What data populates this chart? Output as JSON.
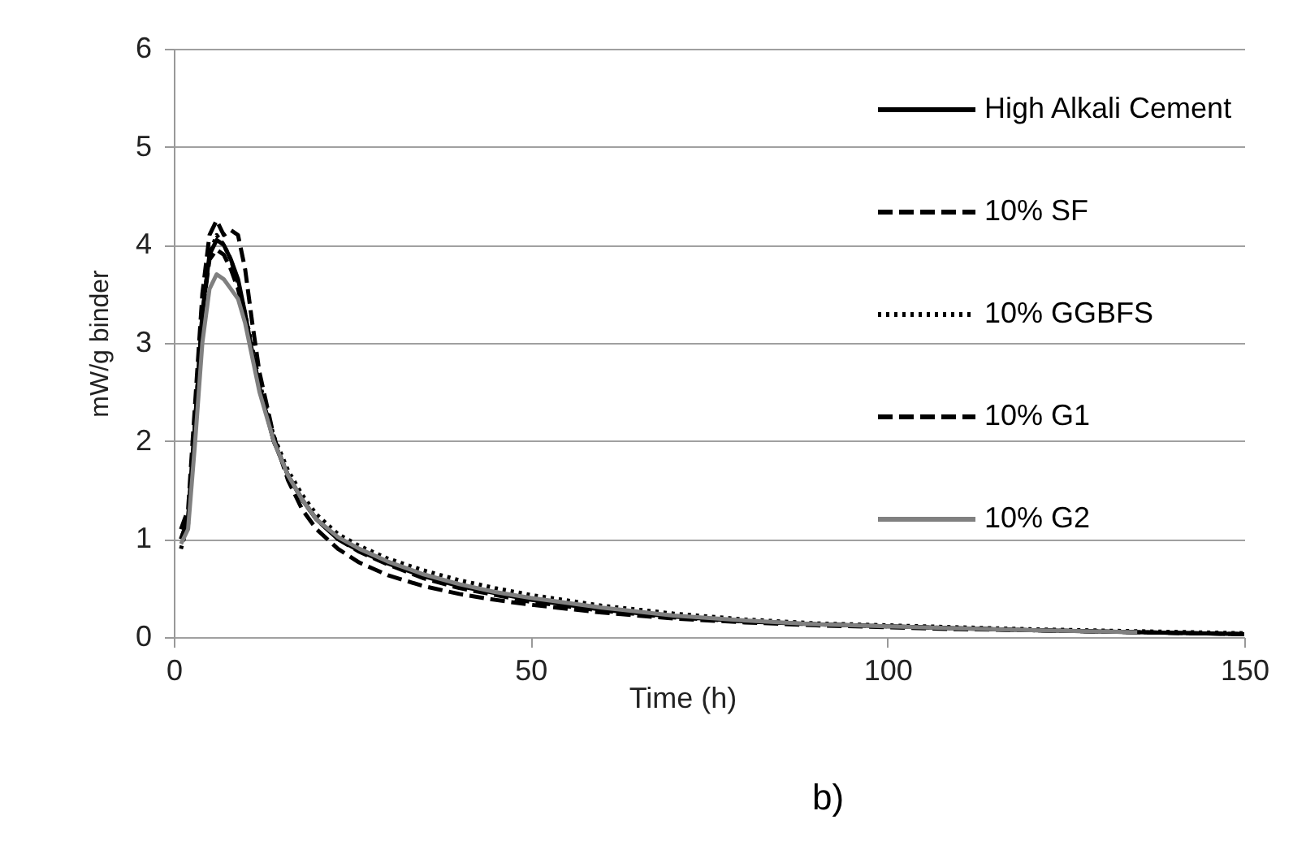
{
  "chart_data": {
    "type": "line",
    "xlabel": "Time (h)",
    "ylabel": "mW/g binder",
    "x": [
      1,
      2,
      3,
      4,
      5,
      6,
      7,
      8,
      9,
      10,
      11,
      12,
      14,
      16,
      18,
      20,
      23,
      26,
      30,
      35,
      40,
      45,
      50,
      60,
      70,
      80,
      90,
      100,
      110,
      120,
      135,
      150
    ],
    "series": [
      {
        "name": "High Alkali Cement",
        "color": "#000000",
        "line_style": "solid",
        "values": [
          1.0,
          1.2,
          2.2,
          3.3,
          3.9,
          4.05,
          4.0,
          3.85,
          3.65,
          3.3,
          2.9,
          2.55,
          2.0,
          1.65,
          1.4,
          1.2,
          1.0,
          0.88,
          0.75,
          0.62,
          0.52,
          0.45,
          0.38,
          0.28,
          0.21,
          0.16,
          0.13,
          0.11,
          0.09,
          0.07,
          0.05,
          0.03
        ]
      },
      {
        "name": "10% SF",
        "color": "#000000",
        "line_style": "dashed",
        "values": [
          1.1,
          1.3,
          2.4,
          3.5,
          4.1,
          4.25,
          4.1,
          4.15,
          4.1,
          3.75,
          3.2,
          2.7,
          2.05,
          1.6,
          1.3,
          1.1,
          0.9,
          0.76,
          0.63,
          0.52,
          0.44,
          0.38,
          0.33,
          0.25,
          0.19,
          0.15,
          0.12,
          0.1,
          0.08,
          0.07,
          0.05,
          0.03
        ]
      },
      {
        "name": "10% GGBFS",
        "color": "#000000",
        "line_style": "dotted",
        "values": [
          0.9,
          1.15,
          2.2,
          3.3,
          3.9,
          4.1,
          4.0,
          3.85,
          3.6,
          3.3,
          2.95,
          2.6,
          2.05,
          1.7,
          1.45,
          1.25,
          1.05,
          0.93,
          0.8,
          0.68,
          0.58,
          0.5,
          0.43,
          0.32,
          0.24,
          0.18,
          0.14,
          0.12,
          0.1,
          0.08,
          0.06,
          0.04
        ]
      },
      {
        "name": "10% G1",
        "color": "#000000",
        "line_style": "dashed",
        "values": [
          1.0,
          1.2,
          2.2,
          3.3,
          3.85,
          3.95,
          3.9,
          3.75,
          3.55,
          3.25,
          2.9,
          2.55,
          2.0,
          1.65,
          1.4,
          1.2,
          1.0,
          0.87,
          0.74,
          0.6,
          0.5,
          0.43,
          0.36,
          0.27,
          0.2,
          0.16,
          0.13,
          0.11,
          0.09,
          0.07,
          0.05,
          0.03
        ]
      },
      {
        "name": "10% G2",
        "color": "#808080",
        "line_style": "solid",
        "values": [
          0.95,
          1.1,
          2.0,
          3.0,
          3.55,
          3.7,
          3.65,
          3.55,
          3.45,
          3.2,
          2.85,
          2.5,
          2.0,
          1.65,
          1.4,
          1.2,
          1.02,
          0.9,
          0.77,
          0.64,
          0.54,
          0.46,
          0.4,
          0.3,
          0.22,
          0.17,
          0.13,
          0.11,
          0.09,
          0.07,
          0.05,
          null
        ]
      }
    ],
    "xlim": [
      0,
      150
    ],
    "xticks": [
      0,
      50,
      100,
      150
    ],
    "ylim": [
      0,
      6
    ],
    "yticks": [
      0,
      1,
      2,
      3,
      4,
      5,
      6
    ],
    "grid": "y",
    "legend": "top right",
    "annotations": [
      "b)"
    ]
  }
}
